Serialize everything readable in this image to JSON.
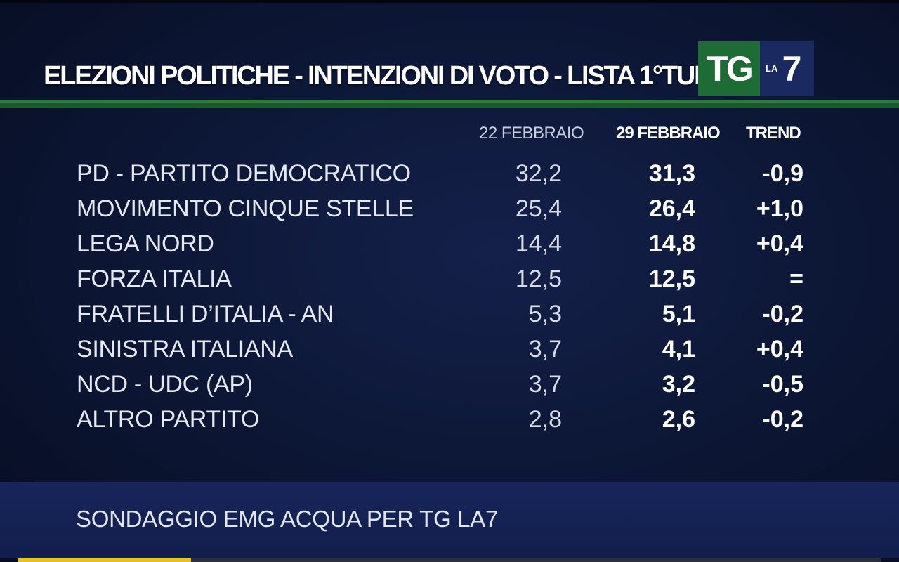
{
  "header": {
    "title": "ELEZIONI POLITICHE - INTENZIONI DI VOTO - LISTA 1°TURNO",
    "logo_tg": "TG",
    "logo_la": "LA",
    "logo_seven": "7"
  },
  "columns": {
    "previous": "22 FEBBRAIO",
    "current": "29 FEBBRAIO",
    "trend": "TREND"
  },
  "rows": [
    {
      "party": "PD - PARTITO DEMOCRATICO",
      "previous": "32,2",
      "current": "31,3",
      "trend": "-0,9"
    },
    {
      "party": "MOVIMENTO CINQUE STELLE",
      "previous": "25,4",
      "current": "26,4",
      "trend": "+1,0"
    },
    {
      "party": "LEGA NORD",
      "previous": "14,4",
      "current": "14,8",
      "trend": "+0,4"
    },
    {
      "party": "FORZA ITALIA",
      "previous": "12,5",
      "current": "12,5",
      "trend": "="
    },
    {
      "party": "FRATELLI D’ITALIA - AN",
      "previous": "5,3",
      "current": "5,1",
      "trend": "-0,2"
    },
    {
      "party": "SINISTRA ITALIANA",
      "previous": "3,7",
      "current": "4,1",
      "trend": "+0,4"
    },
    {
      "party": "NCD - UDC (AP)",
      "previous": "3,7",
      "current": "3,2",
      "trend": "-0,5"
    },
    {
      "party": "ALTRO PARTITO",
      "previous": "2,8",
      "current": "2,6",
      "trend": "-0,2"
    }
  ],
  "footer": {
    "source": "SONDAGGIO EMG ACQUA PER TG LA7"
  },
  "playback": {
    "progress": 0.2
  },
  "colors": {
    "background": "#0d1838",
    "accent_green": "#1d6b35",
    "logo_blue": "#1a2a60",
    "progress": "#e6c12e"
  }
}
